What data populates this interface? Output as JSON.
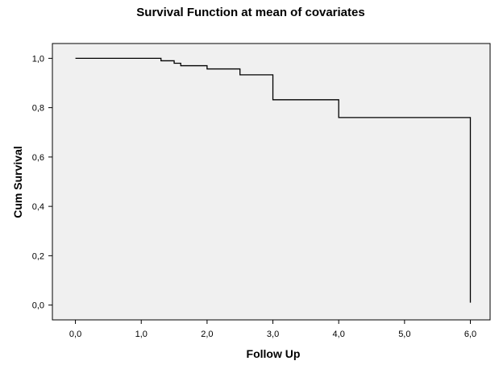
{
  "chart_data": {
    "type": "line",
    "step": true,
    "title": "Survival Function at mean of covariates",
    "xlabel": "Follow Up",
    "ylabel": "Cum Survival",
    "xlim": [
      -0.35,
      6.3
    ],
    "ylim": [
      -0.06,
      1.06
    ],
    "xticks": [
      0,
      1,
      2,
      3,
      4,
      5,
      6
    ],
    "xtick_labels": [
      "0,0",
      "1,0",
      "2,0",
      "3,0",
      "4,0",
      "5,0",
      "6,0"
    ],
    "yticks": [
      0,
      0.2,
      0.4,
      0.6,
      0.8,
      1.0
    ],
    "ytick_labels": [
      "0,0",
      "0,2",
      "0,4",
      "0,6",
      "0,8",
      "1,0"
    ],
    "grid": false,
    "legend": "none",
    "plot_background": "#f0f0f0",
    "line_color": "#000000",
    "series": [
      {
        "x": [
          0.0,
          1.3,
          1.5,
          1.6,
          2.0,
          2.5,
          3.0,
          4.0,
          6.0
        ],
        "y": [
          1.0,
          0.99,
          0.98,
          0.97,
          0.957,
          0.933,
          0.832,
          0.76,
          0.01
        ]
      }
    ]
  }
}
